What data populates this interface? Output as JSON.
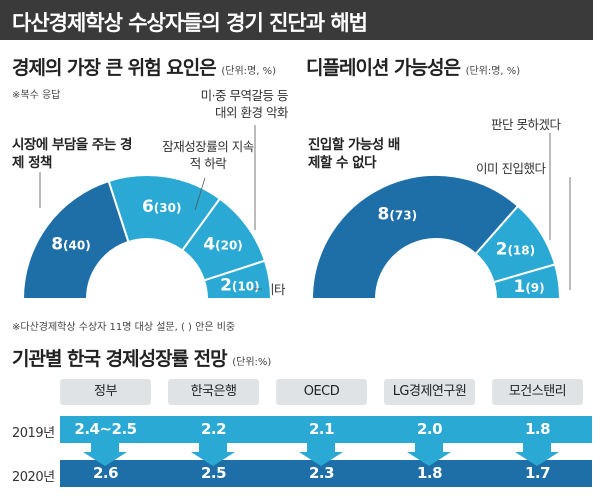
{
  "header": {
    "title": "다산경제학상 수상자들의 경기 진단과 해법"
  },
  "chart_data": [
    {
      "type": "pie",
      "title": "경제의 가장 큰 위험 요인은",
      "unit": "(단위:명, %)",
      "note": "※복수 응답",
      "slices": [
        {
          "label": "시장에 부담을 주는 경제 정책",
          "value": 8,
          "percent": 40,
          "color": "#1e6fa8",
          "emphasis": true
        },
        {
          "label": "잠재성장률의 지속적 하락",
          "value": 6,
          "percent": 30,
          "color": "#29a9d4"
        },
        {
          "label": "미·중 무역갈등 등 대외 환경 악화",
          "value": 4,
          "percent": 20,
          "color": "#29a9d4"
        },
        {
          "label": "기타",
          "value": 2,
          "percent": 10,
          "color": "#29a9d4"
        }
      ]
    },
    {
      "type": "pie",
      "title": "디플레이션 가능성은",
      "unit": "(단위:명, %)",
      "slices": [
        {
          "label": "진입할 가능성 배제할 수 없다",
          "value": 8,
          "percent": 73,
          "color": "#1e6fa8",
          "emphasis": true
        },
        {
          "label": "판단 못하겠다",
          "value": 2,
          "percent": 18,
          "color": "#29a9d4"
        },
        {
          "label": "이미 진입했다",
          "value": 1,
          "percent": 9,
          "color": "#29a9d4"
        }
      ]
    },
    {
      "type": "table",
      "title": "기관별 한국 경제성장률 전망",
      "unit": "(단위:%)",
      "columns": [
        "정부",
        "한국은행",
        "OECD",
        "LG경제연구원",
        "모건스탠리"
      ],
      "rows": [
        {
          "label": "2019년",
          "values": [
            "2.4~2.5",
            "2.2",
            "2.1",
            "2.0",
            "1.8"
          ]
        },
        {
          "label": "2020년",
          "values": [
            "2.6",
            "2.5",
            "2.3",
            "1.8",
            "1.7"
          ]
        }
      ]
    }
  ],
  "footnote": "※다산경제학상 수상자 11명 대상 설문, ( ) 안은 비중"
}
